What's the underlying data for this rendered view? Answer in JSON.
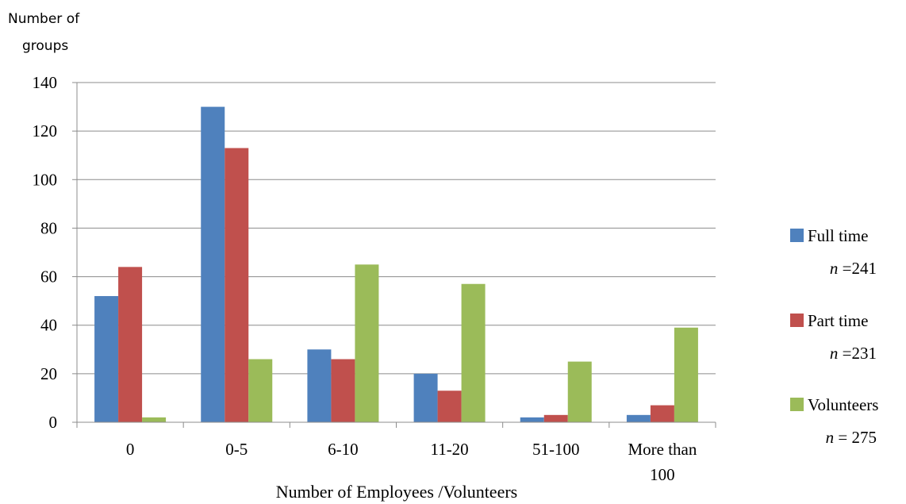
{
  "chart_data": {
    "type": "bar",
    "ylabel_line1": "Number of",
    "ylabel_line2": "groups",
    "xlabel": "Number of Employees /Volunteers",
    "categories": [
      "0",
      "0-5",
      "6-10",
      "11-20",
      "51-100",
      "More than 100"
    ],
    "category_lines": [
      [
        "0"
      ],
      [
        "0-5"
      ],
      [
        "6-10"
      ],
      [
        "11-20"
      ],
      [
        "51-100"
      ],
      [
        "More than",
        "100"
      ]
    ],
    "ylim": [
      0,
      140
    ],
    "yticks": [
      0,
      20,
      40,
      60,
      80,
      100,
      120,
      140
    ],
    "grid": true,
    "legend_position": "right",
    "series": [
      {
        "name": "Full time",
        "note": "n =241",
        "color": "#4F81BD",
        "values": [
          52,
          130,
          30,
          20,
          2,
          3
        ]
      },
      {
        "name": "Part time",
        "note": "n =231",
        "color": "#C0504D",
        "values": [
          64,
          113,
          26,
          13,
          3,
          7
        ]
      },
      {
        "name": "Volunteers",
        "note": "n = 275",
        "color": "#9BBB59",
        "values": [
          2,
          26,
          65,
          57,
          25,
          39
        ]
      }
    ]
  }
}
